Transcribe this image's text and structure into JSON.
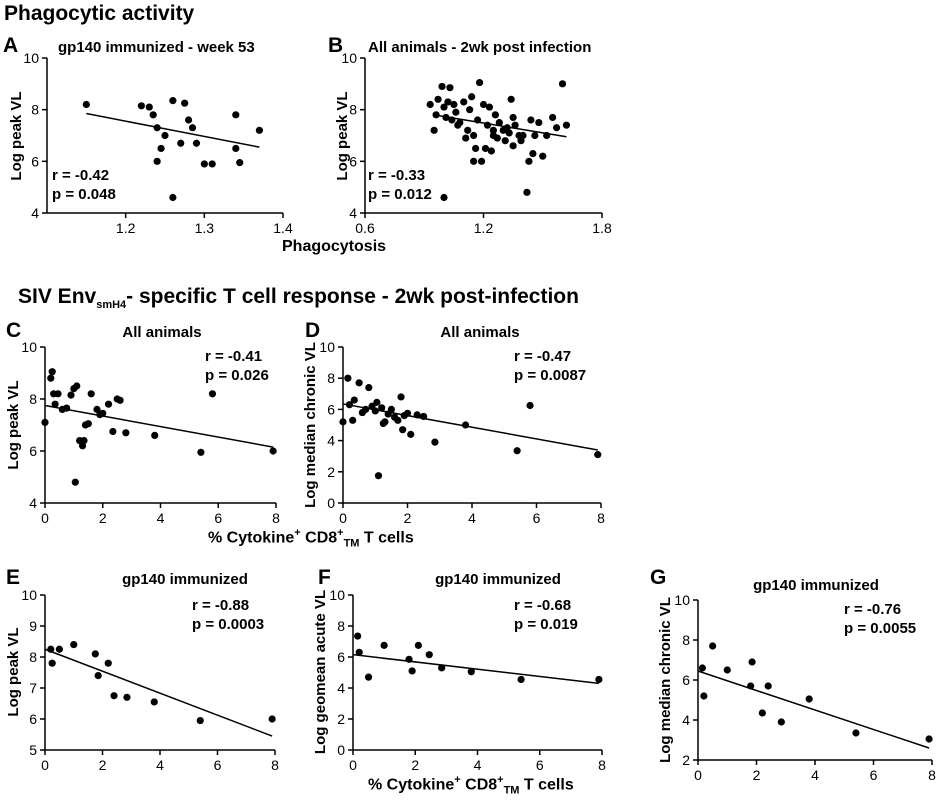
{
  "sections": {
    "phagocytic_title": "Phagocytic activity",
    "t_cell_title_pre": "SIV Env",
    "t_cell_title_sub": "smH4",
    "t_cell_title_post": "- specific T cell response - 2wk post-infection"
  },
  "shared_labels": {
    "phagocytosis": "Phagocytosis",
    "cytokine_pre": "% Cytokine",
    "cytokine_sup1": "+",
    "cytokine_mid": " CD8",
    "cytokine_sup2": "+",
    "cytokine_sub": "TM",
    "cytokine_post": " T cells"
  },
  "chart_data": [
    {
      "panel": "A",
      "type": "scatter",
      "title": "gp140 immunized - week 53",
      "ylabel": "Log peak VL",
      "xlabel": "",
      "xlim": [
        1.1,
        1.4
      ],
      "ylim": [
        4,
        10
      ],
      "xticks": [
        1.2,
        1.3,
        1.4
      ],
      "yticks": [
        4,
        6,
        8,
        10
      ],
      "annotation": [
        "r = -0.42",
        "p = 0.048"
      ],
      "fit": [
        [
          1.15,
          7.85
        ],
        [
          1.37,
          6.55
        ]
      ],
      "x": [
        1.15,
        1.22,
        1.23,
        1.235,
        1.24,
        1.24,
        1.245,
        1.25,
        1.26,
        1.26,
        1.27,
        1.275,
        1.28,
        1.285,
        1.29,
        1.3,
        1.31,
        1.34,
        1.34,
        1.345,
        1.37
      ],
      "y": [
        8.2,
        8.15,
        8.1,
        7.8,
        7.3,
        6.0,
        6.5,
        7.0,
        8.35,
        4.6,
        6.7,
        8.25,
        7.6,
        7.3,
        6.7,
        5.9,
        5.9,
        7.8,
        6.5,
        5.95,
        7.2
      ]
    },
    {
      "panel": "B",
      "type": "scatter",
      "title": "All animals - 2wk post infection",
      "ylabel": "Log peak VL",
      "xlabel": "",
      "xlim": [
        0.6,
        1.8
      ],
      "ylim": [
        4,
        10
      ],
      "xticks": [
        0.6,
        1.2,
        1.8
      ],
      "yticks": [
        4,
        6,
        8,
        10
      ],
      "annotation": [
        "r = -0.33",
        "p = 0.012"
      ],
      "fit": [
        [
          0.95,
          7.8
        ],
        [
          1.62,
          6.95
        ]
      ],
      "x": [
        0.93,
        0.95,
        0.97,
        0.99,
        1.0,
        1.01,
        1.02,
        1.03,
        1.04,
        1.05,
        1.06,
        1.07,
        1.08,
        1.1,
        1.11,
        1.12,
        1.13,
        1.14,
        1.15,
        1.16,
        1.17,
        1.18,
        1.19,
        1.2,
        1.21,
        1.22,
        1.23,
        1.24,
        1.25,
        1.26,
        1.27,
        1.28,
        1.3,
        1.31,
        1.32,
        1.33,
        1.34,
        1.35,
        1.36,
        1.38,
        1.39,
        1.4,
        1.42,
        1.43,
        1.44,
        1.45,
        1.46,
        1.48,
        1.5,
        1.52,
        1.55,
        1.57,
        1.6,
        1.62,
        0.96,
        1.0,
        1.15,
        1.25,
        1.35
      ],
      "y": [
        8.2,
        7.2,
        8.4,
        8.9,
        8.1,
        7.7,
        8.3,
        8.85,
        7.6,
        8.2,
        7.9,
        7.4,
        7.5,
        8.3,
        6.9,
        7.2,
        8.0,
        8.5,
        7.0,
        6.5,
        7.6,
        9.05,
        6.0,
        8.2,
        6.5,
        7.4,
        8.1,
        6.4,
        7.0,
        7.8,
        6.9,
        7.5,
        7.2,
        6.8,
        7.3,
        7.1,
        8.4,
        6.6,
        7.4,
        7.0,
        6.8,
        7.0,
        4.8,
        6.0,
        7.6,
        6.3,
        7.0,
        7.5,
        6.2,
        7.0,
        7.7,
        7.3,
        9.0,
        7.4,
        7.8,
        4.6,
        6.0,
        7.2,
        7.7
      ]
    },
    {
      "panel": "C",
      "type": "scatter",
      "title": "All animals",
      "ylabel": "Log peak VL",
      "xlabel": "",
      "xlim": [
        0,
        8
      ],
      "ylim": [
        4,
        10
      ],
      "xticks": [
        0,
        2,
        4,
        6,
        8
      ],
      "yticks": [
        4,
        6,
        8,
        10
      ],
      "annotation": [
        "r = -0.41",
        "p = 0.026"
      ],
      "fit": [
        [
          0,
          7.75
        ],
        [
          7.9,
          6.15
        ]
      ],
      "x": [
        0.0,
        0.2,
        0.25,
        0.3,
        0.35,
        0.45,
        0.6,
        0.75,
        0.9,
        1.0,
        1.1,
        1.2,
        1.3,
        1.35,
        1.4,
        1.5,
        1.6,
        1.8,
        1.9,
        2.0,
        2.2,
        2.35,
        2.5,
        2.6,
        2.8,
        3.8,
        5.4,
        5.8,
        7.9,
        1.05
      ],
      "y": [
        7.1,
        8.8,
        9.05,
        8.2,
        7.8,
        8.2,
        7.6,
        7.65,
        8.15,
        8.4,
        8.5,
        6.4,
        6.2,
        6.4,
        7.0,
        7.05,
        8.2,
        7.6,
        7.4,
        7.45,
        7.8,
        6.75,
        8.0,
        7.95,
        6.7,
        6.6,
        5.95,
        8.2,
        6.0,
        4.8
      ]
    },
    {
      "panel": "D",
      "type": "scatter",
      "title": "All animals",
      "ylabel": "Log median chronic VL",
      "xlabel": "",
      "xlim": [
        0,
        8
      ],
      "ylim": [
        0,
        10
      ],
      "xticks": [
        0,
        2,
        4,
        6,
        8
      ],
      "yticks": [
        0,
        2,
        4,
        6,
        8,
        10
      ],
      "annotation": [
        "r = -0.47",
        "p = 0.0087"
      ],
      "fit": [
        [
          0,
          6.35
        ],
        [
          7.9,
          3.4
        ]
      ],
      "x": [
        0.0,
        0.15,
        0.2,
        0.3,
        0.35,
        0.5,
        0.6,
        0.7,
        0.8,
        0.9,
        1.0,
        1.05,
        1.1,
        1.2,
        1.3,
        1.4,
        1.5,
        1.6,
        1.7,
        1.8,
        1.85,
        1.9,
        2.0,
        2.1,
        2.3,
        2.5,
        2.85,
        3.8,
        5.4,
        5.8,
        7.9,
        1.25
      ],
      "y": [
        5.2,
        8.0,
        6.3,
        5.3,
        6.6,
        7.7,
        5.8,
        6.0,
        7.4,
        6.2,
        5.9,
        6.45,
        1.75,
        6.1,
        5.2,
        5.7,
        6.0,
        5.5,
        5.3,
        6.8,
        4.7,
        5.6,
        5.75,
        4.4,
        5.65,
        5.55,
        3.9,
        5.0,
        3.35,
        6.25,
        3.1,
        5.1
      ]
    },
    {
      "panel": "E",
      "type": "scatter",
      "title": "gp140 immunized",
      "ylabel": "Log peak VL",
      "xlabel": "",
      "xlim": [
        0,
        8
      ],
      "ylim": [
        5,
        10
      ],
      "xticks": [
        0,
        2,
        4,
        6,
        8
      ],
      "yticks": [
        5,
        6,
        7,
        8,
        9,
        10
      ],
      "annotation": [
        "r = -0.88",
        "p = 0.0003"
      ],
      "fit": [
        [
          0,
          8.25
        ],
        [
          7.9,
          5.45
        ]
      ],
      "x": [
        0.2,
        0.25,
        0.5,
        1.0,
        1.75,
        1.85,
        2.2,
        2.4,
        2.85,
        3.8,
        5.4,
        7.9
      ],
      "y": [
        8.25,
        7.8,
        8.25,
        8.4,
        8.1,
        7.4,
        7.8,
        6.75,
        6.7,
        6.55,
        5.95,
        6.0
      ]
    },
    {
      "panel": "F",
      "type": "scatter",
      "title": "gp140 immunized",
      "ylabel": "Log geomean acute VL",
      "xlabel": "",
      "xlim": [
        0,
        8
      ],
      "ylim": [
        0,
        10
      ],
      "xticks": [
        0,
        2,
        4,
        6,
        8
      ],
      "yticks": [
        0,
        2,
        4,
        6,
        8,
        10
      ],
      "annotation": [
        "r = -0.68",
        "p = 0.019"
      ],
      "fit": [
        [
          0,
          6.15
        ],
        [
          7.9,
          4.3
        ]
      ],
      "x": [
        0.15,
        0.2,
        0.5,
        1.0,
        1.8,
        1.9,
        2.1,
        2.45,
        2.85,
        3.8,
        5.4,
        7.9
      ],
      "y": [
        7.35,
        6.3,
        4.7,
        6.75,
        5.85,
        5.1,
        6.75,
        6.15,
        5.3,
        5.05,
        4.55,
        4.55
      ]
    },
    {
      "panel": "G",
      "type": "scatter",
      "title": "gp140 immunized",
      "ylabel": "Log median chronic VL",
      "xlabel": "",
      "xlim": [
        0,
        8
      ],
      "ylim": [
        2,
        10
      ],
      "xticks": [
        0,
        2,
        4,
        6,
        8
      ],
      "yticks": [
        2,
        4,
        6,
        8,
        10
      ],
      "annotation": [
        "r = -0.76",
        "p = 0.0055"
      ],
      "fit": [
        [
          0,
          6.45
        ],
        [
          7.9,
          2.6
        ]
      ],
      "x": [
        0.15,
        0.2,
        0.5,
        1.0,
        1.8,
        1.85,
        2.2,
        2.4,
        2.85,
        3.8,
        5.4,
        7.9
      ],
      "y": [
        6.6,
        5.2,
        7.7,
        6.5,
        5.7,
        6.9,
        4.35,
        5.7,
        3.9,
        5.05,
        3.35,
        3.05
      ]
    }
  ]
}
